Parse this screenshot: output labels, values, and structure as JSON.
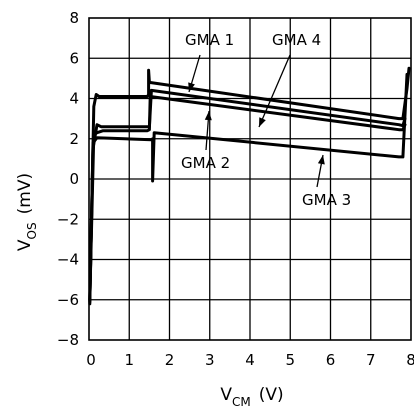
{
  "chart_data": {
    "type": "line",
    "xlabel": {
      "main": "V",
      "sub": "CM",
      "unit": "(V)"
    },
    "ylabel": {
      "main": "V",
      "sub": "OS",
      "unit": "(mV)"
    },
    "xlim": [
      0,
      8
    ],
    "ylim": [
      -8,
      8
    ],
    "x_ticks": [
      0,
      1,
      2,
      3,
      4,
      5,
      6,
      7,
      8
    ],
    "y_ticks": [
      -8,
      -6,
      -4,
      -2,
      0,
      2,
      4,
      6,
      8
    ],
    "x_tick_labels": [
      "0",
      "1",
      "2",
      "3",
      "4",
      "5",
      "6",
      "7",
      "8"
    ],
    "y_tick_labels": [
      "-8",
      "-6",
      "-4",
      "-2",
      "0",
      "2",
      "4",
      "6",
      "8"
    ],
    "grid": true,
    "series": [
      {
        "name": "GMA 1",
        "x": [
          0.02,
          0.12,
          0.18,
          0.25,
          1.35,
          1.45,
          1.48,
          1.48,
          1.5,
          7.7,
          7.8,
          7.9,
          7.95
        ],
        "y": [
          -6.1,
          3.6,
          4.2,
          4.1,
          4.1,
          4.1,
          4.2,
          5.4,
          4.8,
          3.0,
          3.0,
          4.5,
          5.5
        ]
      },
      {
        "name": "GMA 4",
        "x": [
          0.02,
          0.1,
          0.2,
          0.3,
          1.45,
          1.5,
          1.55,
          7.7,
          7.8,
          7.85
        ],
        "y": [
          -6.0,
          1.5,
          2.7,
          2.6,
          2.6,
          2.6,
          4.4,
          2.7,
          2.65,
          3.0
        ]
      },
      {
        "name": "GMA 2",
        "x": [
          0.02,
          0.12,
          0.2,
          0.35,
          1.45,
          1.5,
          1.52,
          7.7,
          7.8,
          7.85
        ],
        "y": [
          -6.0,
          2.2,
          2.3,
          2.4,
          2.4,
          2.45,
          4.1,
          2.45,
          2.45,
          2.7
        ]
      },
      {
        "name": "GMA 3",
        "x": [
          0.02,
          0.1,
          0.2,
          1.55,
          1.58,
          1.58,
          1.62,
          7.7,
          7.8,
          7.9
        ],
        "y": [
          -6.2,
          1.8,
          2.05,
          1.95,
          2.0,
          -0.1,
          2.3,
          1.1,
          1.1,
          5.2
        ]
      }
    ],
    "annotations": [
      {
        "text": "GMA 1"
      },
      {
        "text": "GMA 4"
      },
      {
        "text": "GMA 2"
      },
      {
        "text": "GMA 3"
      }
    ]
  }
}
